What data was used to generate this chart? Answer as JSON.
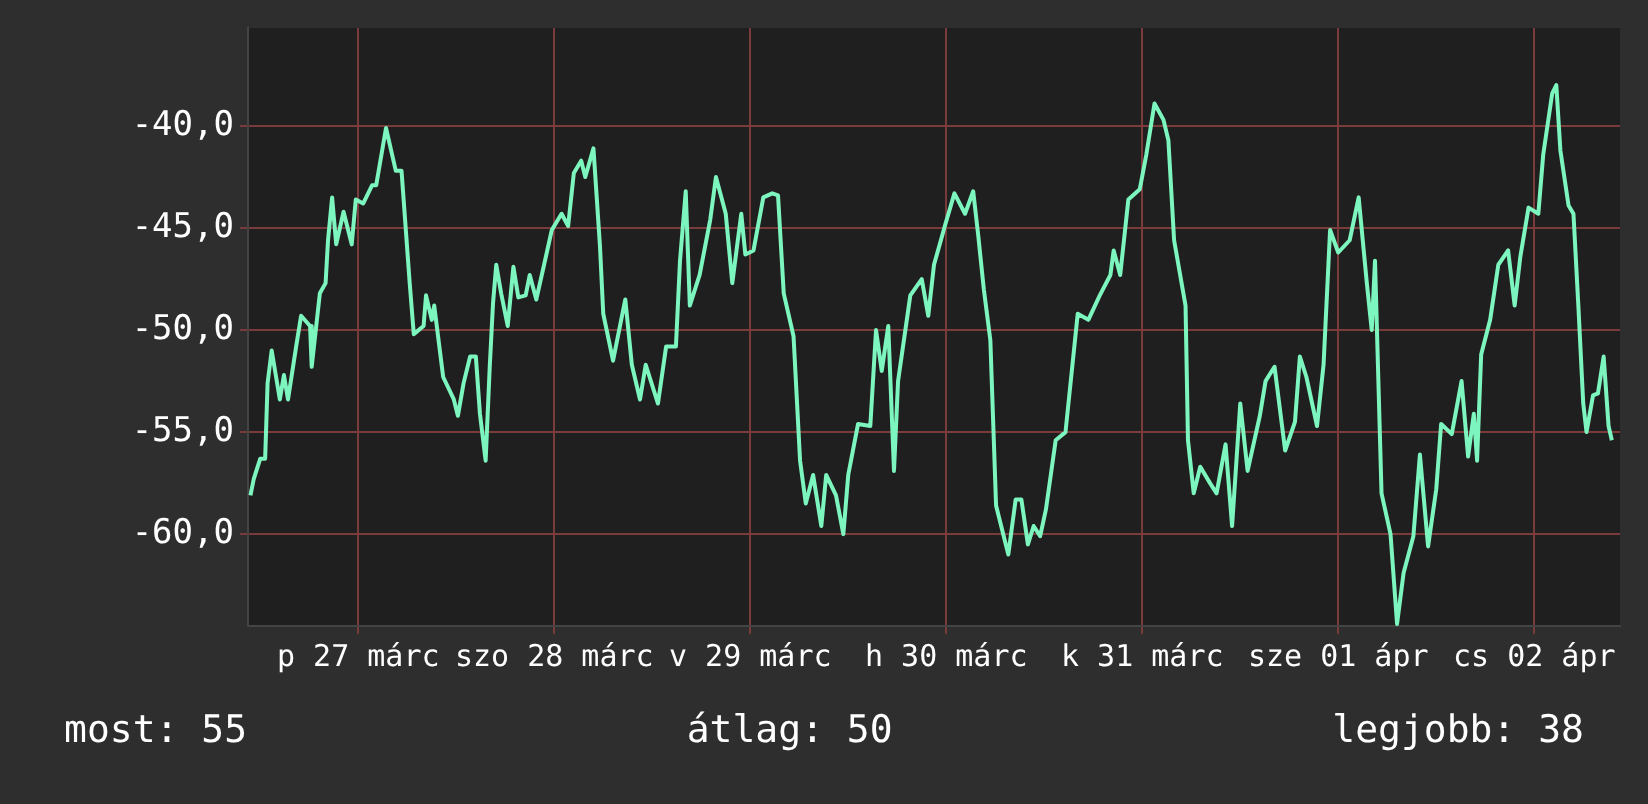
{
  "chart_data": {
    "type": "line",
    "x": [
      "--03-26T10:48",
      "--03-26T11:12",
      "--03-26T12:00",
      "--03-26T12:36",
      "--03-26T12:54",
      "--03-26T13:24",
      "--03-26T14:24",
      "--03-26T14:54",
      "--03-26T15:24",
      "--03-26T16:24",
      "--03-26T17:00",
      "--03-26T18:06",
      "--03-26T18:18",
      "--03-26T19:18",
      "--03-26T20:00",
      "--03-26T20:18",
      "--03-26T20:48",
      "--03-26T21:18",
      "--03-26T22:12",
      "--03-26T23:12",
      "--03-26T23:42",
      "--03-27T00:36",
      "--03-27T01:42",
      "--03-27T02:12",
      "--03-27T03:24",
      "--03-27T04:36",
      "--03-27T05:18",
      "--03-27T06:18",
      "--03-27T06:48",
      "--03-27T08:00",
      "--03-27T08:18",
      "--03-27T09:00",
      "--03-27T09:18",
      "--03-27T10:24",
      "--03-27T11:42",
      "--03-27T12:12",
      "--03-27T12:54",
      "--03-27T13:42",
      "--03-27T14:24",
      "--03-27T14:54",
      "--03-27T15:36",
      "--03-27T16:06",
      "--03-27T16:30",
      "--03-27T16:54",
      "--03-27T17:30",
      "--03-27T18:18",
      "--03-27T19:00",
      "--03-27T19:36",
      "--03-27T20:30",
      "--03-27T21:00",
      "--03-27T21:48",
      "--03-27T22:42",
      "--03-27T23:42",
      "--03-28T00:54",
      "--03-28T01:42",
      "--03-28T02:24",
      "--03-28T03:18",
      "--03-28T03:48",
      "--03-28T04:48",
      "--03-28T05:36",
      "--03-28T06:00",
      "--03-28T07:12",
      "--03-28T08:42",
      "--03-28T09:30",
      "--03-28T10:30",
      "--03-28T11:12",
      "--03-28T12:42",
      "--03-28T13:42",
      "--03-28T14:54",
      "--03-28T15:24",
      "--03-28T16:06",
      "--03-28T16:36",
      "--03-28T17:48",
      "--03-28T19:06",
      "--03-28T19:48",
      "--03-28T21:00",
      "--03-28T21:48",
      "--03-28T22:54",
      "--03-28T23:24",
      "--03-29T00:24",
      "--03-29T01:36",
      "--03-29T02:42",
      "--03-29T03:24",
      "--03-29T04:06",
      "--03-29T05:18",
      "--03-29T06:06",
      "--03-29T06:48",
      "--03-29T07:42",
      "--03-29T08:42",
      "--03-29T09:18",
      "--03-29T10:30",
      "--03-29T11:24",
      "--03-29T12:00",
      "--03-29T13:12",
      "--03-29T14:42",
      "--03-29T15:24",
      "--03-29T16:06",
      "--03-29T16:54",
      "--03-29T17:36",
      "--03-29T18:06",
      "--03-29T19:36",
      "--03-29T21:00",
      "--03-29T21:48",
      "--03-29T22:30",
      "--03-29T23:54",
      "--03-30T01:00",
      "--03-30T02:18",
      "--03-30T03:18",
      "--03-30T03:54",
      "--03-30T04:36",
      "--03-30T05:24",
      "--03-30T06:06",
      "--03-30T07:36",
      "--03-30T08:30",
      "--03-30T09:12",
      "--03-30T10:00",
      "--03-30T10:42",
      "--03-30T11:30",
      "--03-30T12:12",
      "--03-30T13:24",
      "--03-30T14:36",
      "--03-30T16:06",
      "--03-30T17:24",
      "--03-30T18:48",
      "--03-30T20:06",
      "--03-30T20:30",
      "--03-30T21:18",
      "--03-30T22:18",
      "--03-30T23:42",
      "--03-31T00:30",
      "--03-31T01:30",
      "--03-31T02:36",
      "--03-31T03:12",
      "--03-31T03:54",
      "--03-31T05:18",
      "--03-31T05:36",
      "--03-31T06:18",
      "--03-31T07:06",
      "--03-31T08:18",
      "--03-31T09:06",
      "--03-31T10:12",
      "--03-31T11:00",
      "--03-31T12:00",
      "--03-31T12:54",
      "--03-31T14:24",
      "--03-31T15:06",
      "--03-31T16:12",
      "--03-31T17:30",
      "--03-31T18:42",
      "--03-31T19:18",
      "--03-31T20:06",
      "--03-31T21:24",
      "--03-31T22:12",
      "--03-31T23:00",
      "--04-01T00:00",
      "--04-01T01:24",
      "--04-01T02:30",
      "--04-01T03:30",
      "--04-01T04:06",
      "--04-01T04:30",
      "--04-01T05:18",
      "--04-01T06:24",
      "--04-01T07:12",
      "--04-01T08:00",
      "--04-01T09:12",
      "--04-01T10:00",
      "--04-01T11:00",
      "--04-01T12:00",
      "--04-01T12:36",
      "--04-01T13:54",
      "--04-01T15:06",
      "--04-01T15:54",
      "--04-01T16:36",
      "--04-01T17:00",
      "--04-01T17:30",
      "--04-01T18:36",
      "--04-01T19:36",
      "--04-01T20:48",
      "--04-01T21:36",
      "--04-01T22:18",
      "--04-01T23:18",
      "--04-02T00:30",
      "--04-02T01:06",
      "--04-02T02:12",
      "--04-02T02:42",
      "--04-02T03:12",
      "--04-02T04:12",
      "--04-02T04:48",
      "--04-02T05:24",
      "--04-02T06:00",
      "--04-02T06:24",
      "--04-02T07:12",
      "--04-02T07:48",
      "--04-02T08:30",
      "--04-02T09:06",
      "--04-02T09:30"
    ],
    "series": [
      {
        "color": "#7df5be",
        "values": [
          -58.1,
          -57.3,
          -56.3,
          -56.3,
          -52.6,
          -51.0,
          -53.4,
          -52.2,
          -53.4,
          -50.8,
          -49.3,
          -49.8,
          -51.8,
          -48.2,
          -47.7,
          -45.6,
          -43.5,
          -45.8,
          -44.2,
          -45.8,
          -43.6,
          -43.8,
          -42.9,
          -42.9,
          -40.1,
          -42.2,
          -42.2,
          -47.7,
          -50.2,
          -49.8,
          -48.3,
          -49.5,
          -48.8,
          -52.3,
          -53.4,
          -54.2,
          -52.6,
          -51.3,
          -51.3,
          -54.1,
          -56.4,
          -51.8,
          -48.7,
          -46.8,
          -48.2,
          -49.8,
          -46.9,
          -48.4,
          -48.3,
          -47.3,
          -48.5,
          -46.9,
          -45.1,
          -44.3,
          -44.9,
          -42.3,
          -41.7,
          -42.5,
          -41.1,
          -45.9,
          -49.2,
          -51.5,
          -48.5,
          -51.7,
          -53.4,
          -51.7,
          -53.6,
          -50.8,
          -50.8,
          -46.6,
          -43.2,
          -48.8,
          -47.3,
          -44.6,
          -42.5,
          -44.3,
          -47.7,
          -44.3,
          -46.3,
          -46.1,
          -43.5,
          -43.3,
          -43.4,
          -48.2,
          -50.3,
          -56.4,
          -58.5,
          -57.1,
          -59.6,
          -57.1,
          -58.1,
          -60.0,
          -57.1,
          -54.6,
          -54.7,
          -50.0,
          -52.0,
          -49.8,
          -56.9,
          -52.5,
          -48.3,
          -47.5,
          -49.3,
          -46.8,
          -44.8,
          -43.3,
          -44.3,
          -43.2,
          -45.3,
          -48.0,
          -50.5,
          -58.6,
          -61.0,
          -58.3,
          -58.3,
          -60.5,
          -59.6,
          -60.1,
          -58.8,
          -55.4,
          -55.0,
          -49.2,
          -49.5,
          -48.3,
          -47.3,
          -46.1,
          -47.3,
          -43.6,
          -43.1,
          -41.4,
          -38.9,
          -39.7,
          -40.7,
          -45.6,
          -48.8,
          -55.4,
          -58.0,
          -56.7,
          -57.5,
          -58.0,
          -55.6,
          -59.6,
          -53.6,
          -56.9,
          -54.2,
          -52.5,
          -51.8,
          -55.9,
          -54.5,
          -51.3,
          -52.3,
          -54.7,
          -51.7,
          -45.1,
          -46.2,
          -45.6,
          -43.5,
          -47.7,
          -50.0,
          -46.6,
          -58.0,
          -60.0,
          -64.4,
          -61.9,
          -60.1,
          -56.1,
          -60.6,
          -57.8,
          -54.6,
          -55.1,
          -52.5,
          -56.2,
          -54.1,
          -56.4,
          -51.2,
          -49.5,
          -46.8,
          -46.1,
          -48.8,
          -46.4,
          -44.0,
          -44.3,
          -41.4,
          -38.4,
          -38.0,
          -41.2,
          -43.9,
          -44.3,
          -48.8,
          -53.6,
          -55.0,
          -53.2,
          -53.1,
          -51.3,
          -54.7,
          -55.4
        ]
      }
    ],
    "xlim": [
      "--03-26T10:30",
      "--04-02T10:30"
    ],
    "xticks": [
      {
        "value": "--03-27",
        "label": "p 27 márc"
      },
      {
        "value": "--03-28",
        "label": "szo 28 márc"
      },
      {
        "value": "--03-29",
        "label": "v 29 márc"
      },
      {
        "value": "--03-30",
        "label": "h 30 márc"
      },
      {
        "value": "--03-31",
        "label": "k 31 márc"
      },
      {
        "value": "--04-01",
        "label": "sze 01 ápr"
      },
      {
        "value": "--04-02",
        "label": "cs 02 ápr"
      }
    ],
    "ylim": [
      -64.5,
      -35.2
    ],
    "yticks": [
      {
        "value": -60,
        "label": "-60,0"
      },
      {
        "value": -55,
        "label": "-55,0"
      },
      {
        "value": -50,
        "label": "-50,0"
      },
      {
        "value": -45,
        "label": "-45,0"
      },
      {
        "value": -40,
        "label": "-40,0"
      }
    ],
    "grid": true,
    "marker": "none",
    "line_style": "solid",
    "annotations": [
      "most: 55",
      "átlag: 50",
      "legjobb: 38"
    ]
  }
}
